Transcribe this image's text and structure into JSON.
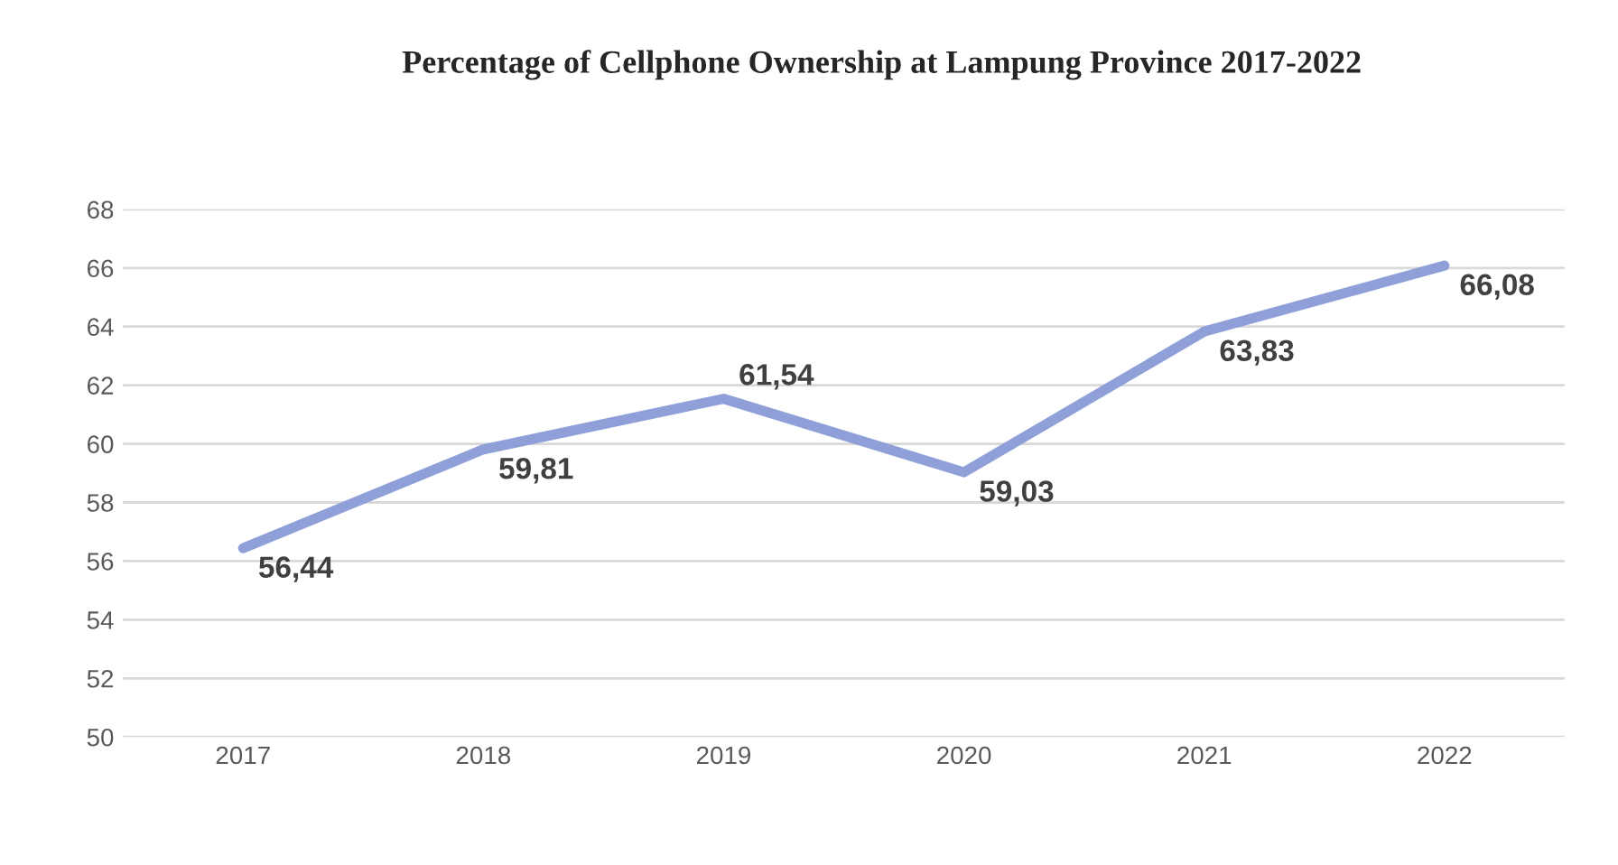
{
  "chart_data": {
    "type": "line",
    "title": "Percentage of Cellphone Ownership at Lampung Province 2017-2022",
    "categories": [
      "2017",
      "2018",
      "2019",
      "2020",
      "2021",
      "2022"
    ],
    "series": [
      {
        "color": "#8fa0d8",
        "values": [
          56.44,
          59.81,
          61.54,
          59.03,
          63.83,
          66.08
        ],
        "value_labels": [
          "56,44",
          "59,81",
          "61,54",
          "59,03",
          "63,83",
          "66,08"
        ]
      }
    ],
    "ylim": [
      50,
      68
    ],
    "yticks": [
      50,
      52,
      54,
      56,
      58,
      60,
      62,
      64,
      66,
      68
    ],
    "grid": "y",
    "marker": "none",
    "line_style": "solid"
  }
}
